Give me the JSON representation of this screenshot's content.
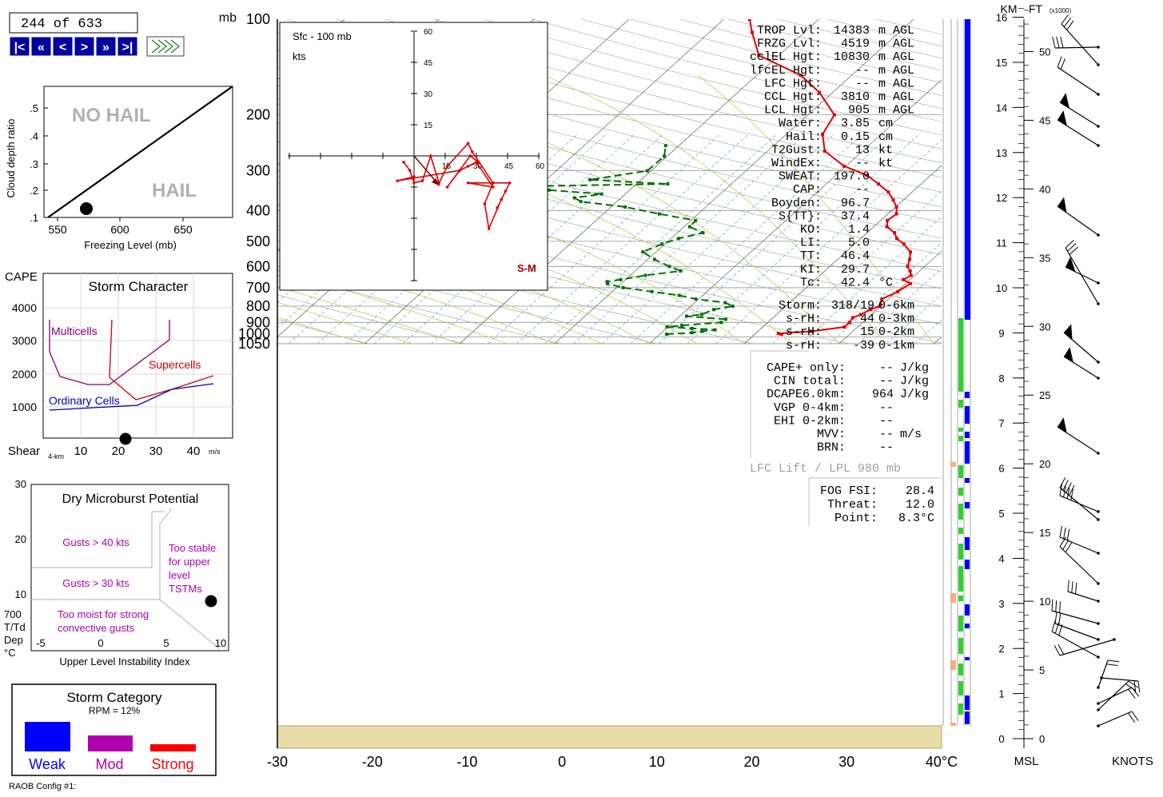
{
  "nav": {
    "record": "244 of 633",
    "buttons": [
      "|<",
      "«",
      "<",
      ">",
      "»",
      ">|"
    ],
    "wind_icon": "wind-barb-toggle-icon"
  },
  "hail_panel": {
    "ylabel": "Cloud depth ratio",
    "xlabel": "Freezing Level (mb)",
    "no_hail": "NO HAIL",
    "hail": "HAIL",
    "yticks": [
      ".5",
      ".4",
      ".3",
      ".2",
      ".1"
    ],
    "xticks": [
      "550",
      "600",
      "650"
    ]
  },
  "storm_char": {
    "title": "Storm Character",
    "ylabel": "CAPE",
    "yticks": [
      "4000",
      "3000",
      "2000",
      "1000"
    ],
    "xlabel": "Shear",
    "xlabel_sub": "4-km",
    "xticks": [
      "10",
      "20",
      "30",
      "40"
    ],
    "xunit": "m/s",
    "multicells": "Multicells",
    "supercells": "Supercells",
    "ordinary": "Ordinary Cells"
  },
  "microburst": {
    "title": "Dry Microburst Potential",
    "g40": "Gusts > 40 kts",
    "g30": "Gusts > 30 kts",
    "too_moist": [
      "Too moist for strong",
      "convective gusts"
    ],
    "too_stable": [
      "Too stable",
      "for upper",
      "level",
      "TSTMs"
    ],
    "yticks": [
      "30",
      "20",
      "10"
    ],
    "ylabel": [
      "700",
      "T/Td",
      "Dep",
      "°C"
    ],
    "xticks": [
      "-5",
      "0",
      "5",
      "10"
    ],
    "xlabel": "Upper Level Instability Index"
  },
  "storm_category": {
    "title": "Storm Category",
    "rpm": "RPM = 12%",
    "weak": "Weak",
    "mod": "Mod",
    "strong": "Strong",
    "colors": {
      "weak": "#0000ff",
      "mod": "#b000b0",
      "strong": "#ff0000"
    }
  },
  "footer": "RAOB Config #1:",
  "hodograph": {
    "title": "Sfc - 100 mb",
    "units": "kts",
    "sm_label": "S-M",
    "ticks": [
      "15",
      "30",
      "45",
      "60"
    ]
  },
  "indices": [
    {
      "label": "TROP Lvl:",
      "value": "14383",
      "unit": "m AGL"
    },
    {
      "label": "FRZG Lvl:",
      "value": "4519",
      "unit": "m AGL"
    },
    {
      "label": "cclEL Hgt:",
      "value": "10830",
      "unit": "m AGL"
    },
    {
      "label": "lfcEL Hgt:",
      "value": "--",
      "unit": "m AGL"
    },
    {
      "label": "LFC Hgt:",
      "value": "--",
      "unit": "m AGL"
    },
    {
      "label": "CCL Hgt:",
      "value": "3810",
      "unit": "m AGL"
    },
    {
      "label": "LCL Hgt:",
      "value": "905",
      "unit": "m AGL"
    },
    {
      "label": "Water:",
      "value": "3.85",
      "unit": "cm"
    },
    {
      "label": "Hail:",
      "value": "0.15",
      "unit": "cm"
    },
    {
      "label": "T2Gust:",
      "value": "13",
      "unit": "kt"
    },
    {
      "label": "WindEx:",
      "value": "--",
      "unit": "kt"
    },
    {
      "label": "SWEAT:",
      "value": "197.0",
      "unit": ""
    },
    {
      "label": "CAP:",
      "value": "--",
      "unit": ""
    },
    {
      "label": "Boyden:",
      "value": "96.7",
      "unit": ""
    },
    {
      "label": "S{TT}:",
      "value": "37.4",
      "unit": ""
    },
    {
      "label": "KO:",
      "value": "1.4",
      "unit": ""
    },
    {
      "label": "LI:",
      "value": "5.0",
      "unit": ""
    },
    {
      "label": "TT:",
      "value": "46.4",
      "unit": ""
    },
    {
      "label": "KI:",
      "value": "29.7",
      "unit": ""
    },
    {
      "label": "Tc:",
      "value": "42.4",
      "unit": "°C"
    }
  ],
  "storm_motion": [
    {
      "label": "Storm:",
      "value": "318/19",
      "unit": "0-6km"
    },
    {
      "label": "s-rH:",
      "value": "44",
      "unit": "0-3km"
    },
    {
      "label": "s-rH:",
      "value": "15",
      "unit": "0-2km"
    },
    {
      "label": "s-rH:",
      "value": "-39",
      "unit": "0-1km"
    }
  ],
  "cape_block": [
    {
      "label": "CAPE+ only:",
      "value": "--",
      "unit": "J/kg"
    },
    {
      "label": "CIN total:",
      "value": "--",
      "unit": "J/kg"
    },
    {
      "label": "DCAPE6.0km:",
      "value": "964",
      "unit": "J/kg"
    },
    {
      "label": "VGP 0-4km:",
      "value": "--",
      "unit": ""
    },
    {
      "label": "EHI 0-2km:",
      "value": "--",
      "unit": ""
    },
    {
      "label": "MVV:",
      "value": "--",
      "unit": "m/s"
    },
    {
      "label": "BRN:",
      "value": "--",
      "unit": ""
    }
  ],
  "lift_label": "LFC Lift / LPL 980 mb",
  "fog": [
    {
      "label": "FOG FSI:",
      "value": "28.4"
    },
    {
      "label": "Threat:",
      "value": "12.0"
    },
    {
      "label": "Point:",
      "value": "8.3°C"
    }
  ],
  "skewt_labels": {
    "mb": "mb",
    "temp_unit": "40°C",
    "km": "KM",
    "ft": "FT",
    "ft_sub": "(x1000)",
    "msl": "MSL",
    "knots": "KNOTS"
  },
  "chart_data": {
    "type": "line",
    "title": "",
    "x_axis": {
      "label": "°C",
      "ticks": [
        -30,
        -20,
        -10,
        0,
        10,
        20,
        30,
        40
      ],
      "range": [
        -30,
        40
      ]
    },
    "y_axis": {
      "label": "mb",
      "ticks": [
        100,
        200,
        300,
        400,
        500,
        600,
        700,
        800,
        900,
        1000,
        1050
      ],
      "range": [
        1050,
        100
      ],
      "scale": "log"
    },
    "grid": true,
    "series": [
      {
        "name": "temperature",
        "color": "#e00000",
        "pressure": [
          980,
          975,
          960,
          930,
          900,
          870,
          850,
          820,
          800,
          760,
          720,
          680,
          660,
          640,
          620,
          600,
          570,
          540,
          510,
          490,
          470,
          450,
          430,
          410,
          390,
          370,
          350,
          330,
          310,
          290,
          260,
          230,
          200,
          170,
          150,
          130,
          110,
          100
        ],
        "temp_c": [
          22.8,
          22.4,
          25.6,
          28.6,
          28.6,
          28.4,
          28.9,
          29.3,
          29.9,
          29.3,
          30.1,
          30.5,
          29.3,
          29.6,
          29.0,
          28.2,
          27.6,
          26.8,
          25.2,
          23.8,
          22.9,
          21.4,
          20.7,
          20.9,
          20.1,
          18.9,
          17.5,
          15.5,
          13.3,
          9.8,
          6.0,
          3.8,
          2.8,
          -1.4,
          -5.4,
          -12.1,
          -15.5,
          -17.3
        ]
      },
      {
        "name": "dewpoint",
        "color": "#007000",
        "line_style": "dashed",
        "pressure": [
          980,
          970,
          960,
          950,
          940,
          930,
          920,
          900,
          880,
          860,
          850,
          820,
          800,
          780,
          760,
          740,
          720,
          700,
          680,
          670,
          660,
          640,
          620,
          600,
          570,
          540,
          510,
          490,
          470,
          450,
          430,
          410,
          390,
          375,
          365,
          355,
          345,
          340,
          330,
          320,
          300,
          270,
          250
        ],
        "dewpoint_c": [
          10.7,
          13.2,
          14.1,
          15.3,
          12.7,
          9.9,
          11.3,
          15.1,
          15.2,
          10.7,
          12.1,
          12.8,
          14.4,
          13.2,
          9.7,
          7.5,
          4.2,
          0.7,
          -1.4,
          -1.7,
          -0.5,
          1.6,
          4.8,
          3.1,
          0.7,
          -1.4,
          -0.3,
          0.8,
          2.7,
          0.6,
          0.5,
          -4.1,
          -8.5,
          -13.8,
          -14.9,
          -12.5,
          -18.5,
          -32.6,
          -6.7,
          -15.4,
          -10.4,
          -10.3,
          -11.4
        ]
      }
    ]
  }
}
